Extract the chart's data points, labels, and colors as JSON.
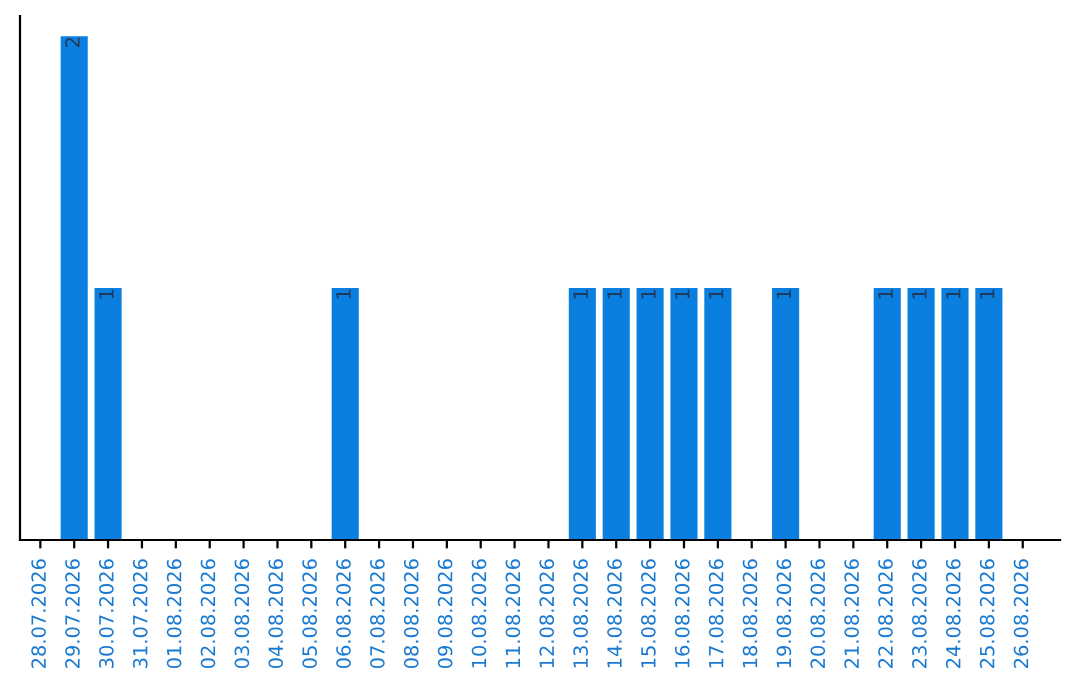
{
  "chart_data": {
    "type": "bar",
    "categories": [
      "28.07.2026",
      "29.07.2026",
      "30.07.2026",
      "31.07.2026",
      "01.08.2026",
      "02.08.2026",
      "03.08.2026",
      "04.08.2026",
      "05.08.2026",
      "06.08.2026",
      "07.08.2026",
      "08.08.2026",
      "09.08.2026",
      "10.08.2026",
      "11.08.2026",
      "12.08.2026",
      "13.08.2026",
      "14.08.2026",
      "15.08.2026",
      "16.08.2026",
      "17.08.2026",
      "18.08.2026",
      "19.08.2026",
      "20.08.2026",
      "21.08.2026",
      "22.08.2026",
      "23.08.2026",
      "24.08.2026",
      "25.08.2026",
      "26.08.2026"
    ],
    "values": [
      0,
      2,
      1,
      0,
      0,
      0,
      0,
      0,
      0,
      1,
      0,
      0,
      0,
      0,
      0,
      0,
      1,
      1,
      1,
      1,
      1,
      0,
      1,
      0,
      0,
      1,
      1,
      1,
      1,
      0
    ],
    "value_labels": [
      null,
      "2",
      "1",
      null,
      null,
      null,
      null,
      null,
      null,
      "1",
      null,
      null,
      null,
      null,
      null,
      null,
      "1",
      "1",
      "1",
      "1",
      "1",
      null,
      "1",
      null,
      null,
      "1",
      "1",
      "1",
      "1",
      null
    ],
    "color": "#0a7fe0",
    "grid": false,
    "legend": false,
    "tick_labels": "x"
  }
}
